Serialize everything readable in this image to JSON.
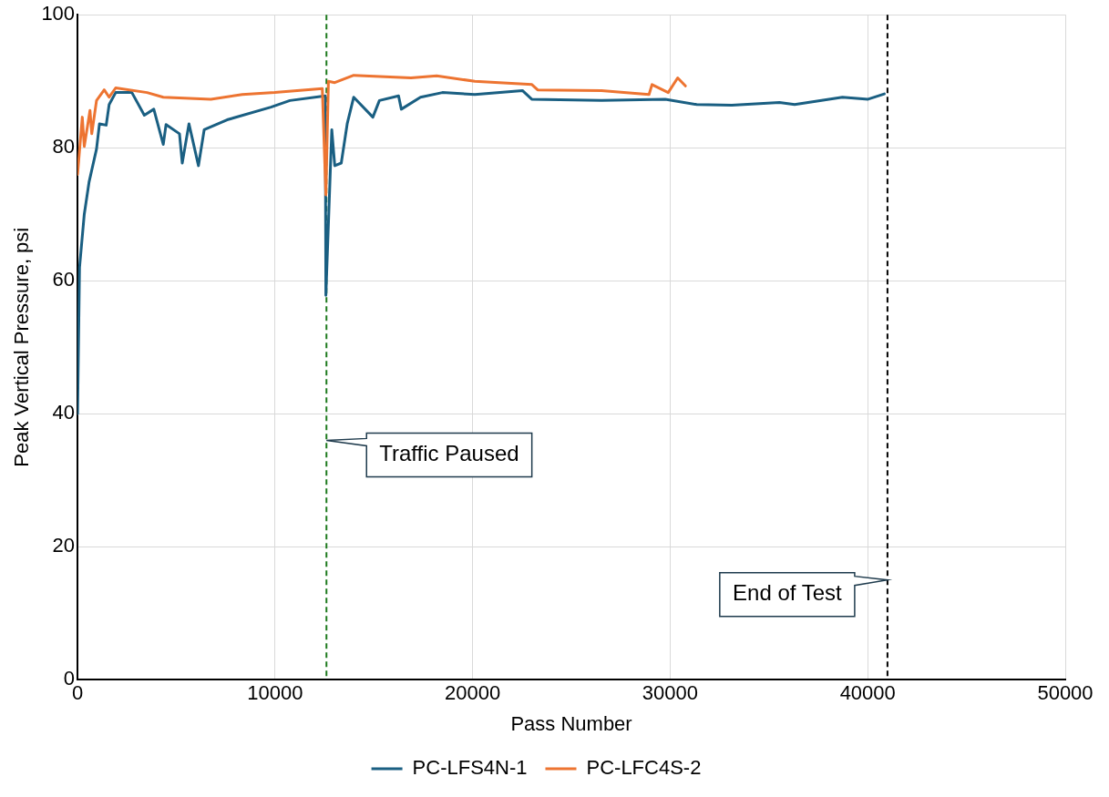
{
  "chart_data": {
    "type": "line",
    "xlabel": "Pass Number",
    "ylabel": "Peak Vertical Pressure, psi",
    "xlim": [
      0,
      50000
    ],
    "xticks": [
      0,
      10000,
      20000,
      30000,
      40000,
      50000
    ],
    "ylim": [
      0,
      100
    ],
    "yticks": [
      0,
      20,
      40,
      60,
      80,
      100
    ],
    "grid": true,
    "legend": "bottom",
    "marker": "none",
    "line_style": "solid",
    "series": [
      {
        "name": "PC-LFS4N-1",
        "color": "#1a5f82",
        "x": [
          0,
          100,
          340,
          580,
          960,
          1110,
          1450,
          1600,
          1930,
          2750,
          3380,
          3860,
          4340,
          4480,
          5160,
          5300,
          5640,
          6120,
          6410,
          7570,
          9790,
          10750,
          12540,
          12570,
          12870,
          13020,
          13350,
          13650,
          13980,
          14950,
          15280,
          16250,
          16390,
          17360,
          18470,
          20110,
          22520,
          22990,
          26520,
          29750,
          31340,
          33120,
          35530,
          36300,
          38720,
          40020,
          40840
        ],
        "values": [
          40,
          62,
          70,
          74.8,
          79.8,
          83.6,
          83.4,
          86.5,
          88.3,
          88.3,
          84.9,
          85.8,
          80.5,
          83.5,
          82.1,
          77.7,
          83.6,
          77.3,
          82.7,
          84.2,
          86.1,
          87.1,
          87.8,
          57.8,
          82.7,
          77.3,
          77.7,
          83.6,
          87.6,
          84.6,
          87.1,
          87.8,
          85.8,
          87.6,
          88.3,
          88.0,
          88.6,
          87.3,
          87.1,
          87.3,
          86.5,
          86.4,
          86.8,
          86.5,
          87.6,
          87.3,
          88.1
        ]
      },
      {
        "name": "PC-LFC4S-2",
        "color": "#ed7431",
        "x": [
          0,
          240,
          340,
          630,
          720,
          960,
          1350,
          1600,
          1930,
          3520,
          4340,
          6750,
          8340,
          9980,
          12390,
          12570,
          12700,
          13020,
          13980,
          16880,
          18180,
          20110,
          23000,
          23290,
          26520,
          28930,
          29080,
          29900,
          30380,
          30770
        ],
        "values": [
          76,
          84.6,
          80.2,
          85.6,
          82.1,
          87.1,
          88.7,
          87.6,
          89.0,
          88.3,
          87.6,
          87.3,
          88.0,
          88.3,
          88.9,
          72.9,
          90.0,
          89.8,
          90.9,
          90.5,
          90.8,
          90.0,
          89.5,
          88.7,
          88.6,
          88.0,
          89.5,
          88.3,
          90.5,
          89.3
        ]
      }
    ],
    "ref_lines": [
      {
        "axis": "x",
        "value": 12600,
        "label": "Traffic Paused",
        "color": "#1e7a1e",
        "line_style": "dashed"
      },
      {
        "axis": "x",
        "value": 41000,
        "label": "End of Test",
        "color": "#000000",
        "line_style": "dashed"
      }
    ]
  }
}
